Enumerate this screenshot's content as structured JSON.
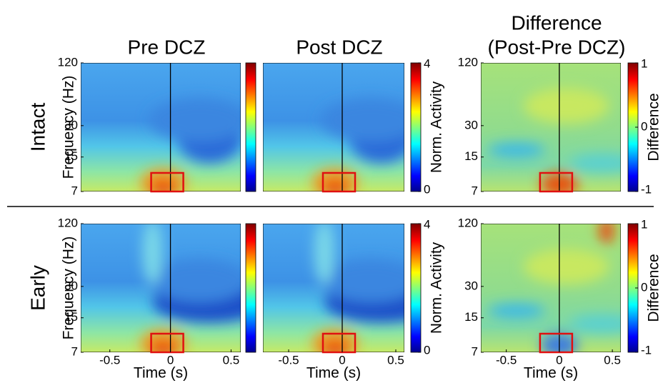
{
  "figure": {
    "columns": [
      {
        "title": [
          "Pre DCZ"
        ]
      },
      {
        "title": [
          "Post DCZ"
        ]
      },
      {
        "title": [
          "Difference",
          "(Post-Pre DCZ)"
        ]
      }
    ],
    "rows": [
      {
        "label": "Intact"
      },
      {
        "label": "Early"
      }
    ],
    "y_axis": {
      "label": "Frequency (Hz)",
      "ticks": [
        7,
        15,
        30,
        120
      ],
      "lim": [
        7,
        120
      ],
      "log": true
    },
    "x_axis": {
      "label": "Time (s)",
      "ticks": [
        -0.5,
        0,
        0.5
      ],
      "lim": [
        -0.74,
        0.58
      ]
    },
    "colorbars": [
      {
        "label": "Norm. Activity",
        "ticks": [
          0,
          4
        ],
        "lim": [
          0,
          4
        ]
      },
      {
        "label": "Difference",
        "ticks": [
          -1,
          0,
          1
        ],
        "lim": [
          -1,
          1
        ]
      }
    ]
  }
}
